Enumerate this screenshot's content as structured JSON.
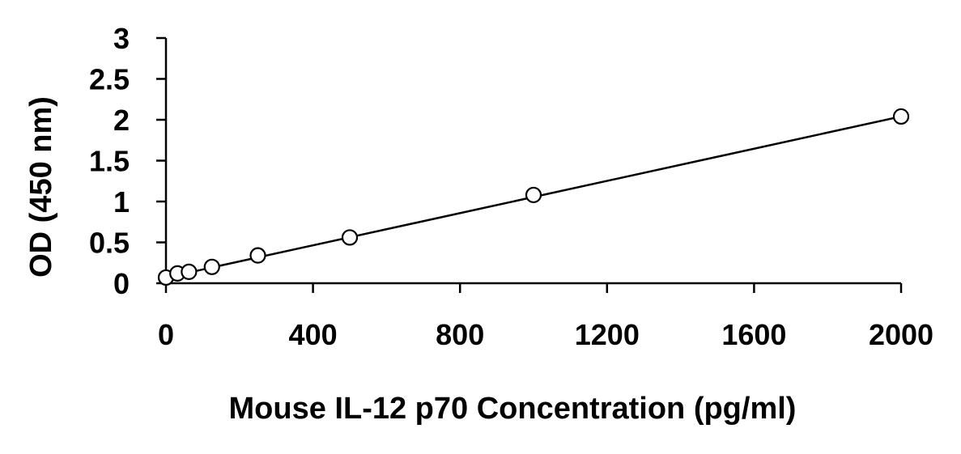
{
  "chart_data": {
    "type": "scatter",
    "title": "",
    "xlabel": "Mouse IL-12 p70 Concentration (pg/ml)",
    "ylabel": "OD (450 nm)",
    "xlim": [
      0,
      2000
    ],
    "ylim": [
      0,
      3
    ],
    "x_ticks": [
      0,
      400,
      800,
      1200,
      1600,
      2000
    ],
    "x_tick_labels": [
      "0",
      "400",
      "800",
      "1200",
      "1600",
      "2000"
    ],
    "y_ticks": [
      0,
      0.5,
      1,
      1.5,
      2,
      2.5,
      3
    ],
    "y_tick_labels": [
      "0",
      "0.5",
      "1",
      "1.5",
      "2",
      "2.5",
      "3"
    ],
    "grid": false,
    "legend": "none",
    "marker": "open-circle",
    "series": [
      {
        "x": [
          0,
          31.25,
          62.5,
          125,
          250,
          500,
          1000,
          2000
        ],
        "y": [
          0.07,
          0.12,
          0.14,
          0.2,
          0.34,
          0.56,
          1.08,
          2.04
        ]
      }
    ],
    "trendline": {
      "type": "linear",
      "x": [
        0,
        2000
      ],
      "y": [
        0.07,
        2.04
      ]
    },
    "colors": {
      "axis": "#000000",
      "marker": "#000000",
      "line": "#000000"
    }
  }
}
